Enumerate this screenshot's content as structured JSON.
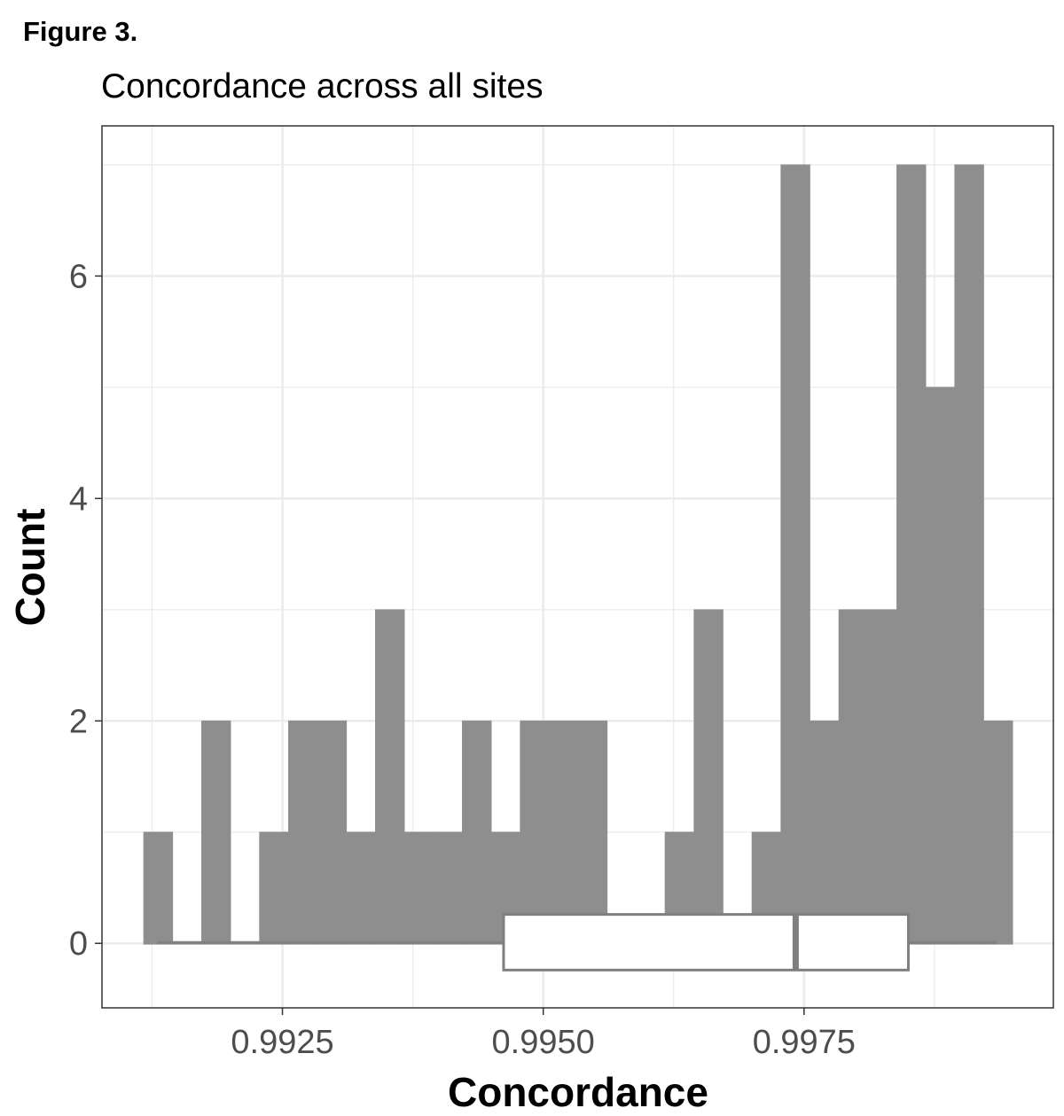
{
  "figure_label": "Figure 3.",
  "chart_data": {
    "type": "histogram",
    "title": "Concordance across all sites",
    "xlabel": "Concordance",
    "ylabel": "Count",
    "xlim": [
      0.99077,
      0.99989
    ],
    "ylim": [
      -0.58,
      7.35
    ],
    "x_ticks": [
      0.9925,
      0.995,
      0.9975
    ],
    "x_tick_labels": [
      "0.9925",
      "0.9950",
      "0.9975"
    ],
    "y_ticks": [
      0,
      2,
      4,
      6
    ],
    "y_tick_labels": [
      "0",
      "2",
      "4",
      "6"
    ],
    "grid": true,
    "bar_color": "#8a8a8a",
    "bin_range": [
      0.99117,
      0.9995
    ],
    "bin_centers": [
      0.99131,
      0.99159,
      0.99186,
      0.99214,
      0.99242,
      0.9927,
      0.99298,
      0.99325,
      0.99353,
      0.99381,
      0.99409,
      0.99436,
      0.99464,
      0.99492,
      0.9952,
      0.99548,
      0.99575,
      0.99603,
      0.99631,
      0.99659,
      0.99686,
      0.99714,
      0.99742,
      0.9977,
      0.99798,
      0.99825,
      0.99853,
      0.99881,
      0.99909,
      0.99936
    ],
    "counts": [
      1,
      0,
      2,
      0,
      1,
      2,
      2,
      1,
      3,
      1,
      1,
      2,
      1,
      2,
      2,
      2,
      0,
      0,
      1,
      3,
      0,
      1,
      7,
      2,
      3,
      3,
      7,
      5,
      7,
      2
    ],
    "boxplot": {
      "min": 0.9913,
      "q1": 0.99462,
      "median": 0.99742,
      "q3": 0.9985,
      "max": 0.99935,
      "outline_color": "#7f7f7f"
    }
  }
}
